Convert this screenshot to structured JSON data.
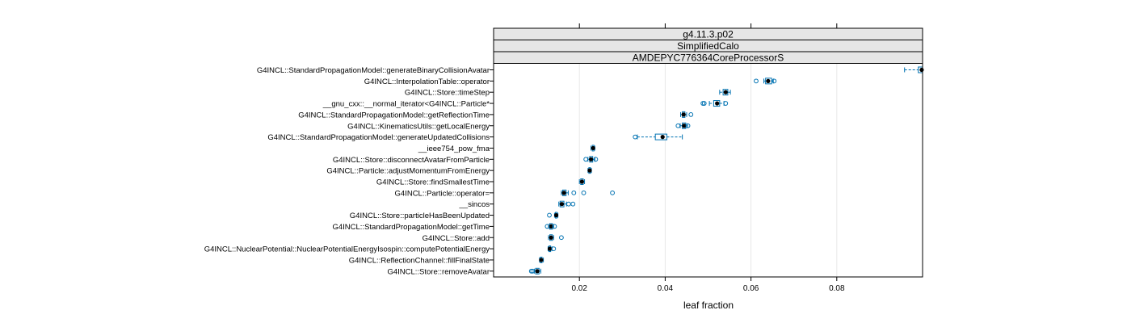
{
  "chart_data": {
    "type": "boxplot",
    "strips": [
      "g4.11.3.p02",
      "SimplifiedCalo",
      "AMDEPYC776364CoreProcessorS"
    ],
    "xlabel": "leaf fraction",
    "xlim": [
      0,
      0.1
    ],
    "xticks": [
      0.02,
      0.04,
      0.06,
      0.08
    ],
    "xtick_labels": [
      "0.02",
      "0.04",
      "0.06",
      "0.08"
    ],
    "grid": true,
    "colors": {
      "box": "#0072b2",
      "median": "#000000",
      "strip": "#e6e6e6",
      "grid": "#e8e8e8"
    },
    "categories": [
      {
        "label": "G4INCL::StandardPropagationModel::generateBinaryCollisionAvatar",
        "whisker_low": 0.0958,
        "q1": 0.099,
        "median": 0.0998,
        "q3": 0.1,
        "whisker_high": 0.1,
        "outliers": []
      },
      {
        "label": "G4INCL::InterpolationTable::operator",
        "whisker_low": 0.063,
        "q1": 0.0634,
        "median": 0.064,
        "q3": 0.0648,
        "whisker_high": 0.0652,
        "outliers": [
          0.0612,
          0.0654
        ]
      },
      {
        "label": "G4INCL::Store::timeStep",
        "whisker_low": 0.0527,
        "q1": 0.0535,
        "median": 0.0541,
        "q3": 0.0546,
        "whisker_high": 0.0552,
        "outliers": []
      },
      {
        "label": "__gnu_cxx::__normal_iterator<G4INCL::Particle*",
        "whisker_low": 0.0503,
        "q1": 0.0513,
        "median": 0.0521,
        "q3": 0.0527,
        "whisker_high": 0.0537,
        "outliers": [
          0.0488,
          0.0491,
          0.0541
        ]
      },
      {
        "label": "G4INCL::StandardPropagationModel::getReflectionTime",
        "whisker_low": 0.0436,
        "q1": 0.044,
        "median": 0.0443,
        "q3": 0.0446,
        "whisker_high": 0.045,
        "outliers": [
          0.046
        ]
      },
      {
        "label": "G4INCL::KinematicsUtils::getLocalEnergy",
        "whisker_low": 0.0435,
        "q1": 0.044,
        "median": 0.0444,
        "q3": 0.0448,
        "whisker_high": 0.0452,
        "outliers": [
          0.043,
          0.0453
        ]
      },
      {
        "label": "G4INCL::StandardPropagationModel::generateUpdatedCollisions",
        "whisker_low": 0.0335,
        "q1": 0.0377,
        "median": 0.0394,
        "q3": 0.0404,
        "whisker_high": 0.044,
        "outliers": [
          0.033
        ]
      },
      {
        "label": "__ieee754_pow_fma",
        "whisker_low": 0.0227,
        "q1": 0.023,
        "median": 0.0232,
        "q3": 0.0234,
        "whisker_high": 0.0236,
        "outliers": []
      },
      {
        "label": "G4INCL::Store::disconnectAvatarFromParticle",
        "whisker_low": 0.022,
        "q1": 0.0224,
        "median": 0.0227,
        "q3": 0.0231,
        "whisker_high": 0.0236,
        "outliers": [
          0.0215,
          0.0238
        ]
      },
      {
        "label": "G4INCL::Particle::adjustMomentumFromEnergy",
        "whisker_low": 0.022,
        "q1": 0.0222,
        "median": 0.0224,
        "q3": 0.0226,
        "whisker_high": 0.0228,
        "outliers": []
      },
      {
        "label": "G4INCL::Store::findSmallestTime",
        "whisker_low": 0.02,
        "q1": 0.0203,
        "median": 0.0206,
        "q3": 0.0209,
        "whisker_high": 0.0212,
        "outliers": []
      },
      {
        "label": "G4INCL::Particle::operator=",
        "whisker_low": 0.0158,
        "q1": 0.0161,
        "median": 0.0164,
        "q3": 0.0169,
        "whisker_high": 0.0174,
        "outliers": [
          0.0187,
          0.021,
          0.0277
        ]
      },
      {
        "label": "__sincos",
        "whisker_low": 0.0152,
        "q1": 0.0155,
        "median": 0.0159,
        "q3": 0.0164,
        "whisker_high": 0.017,
        "outliers": [
          0.0175,
          0.0185
        ]
      },
      {
        "label": "G4INCL::Store::particleHasBeenUpdated",
        "whisker_low": 0.0142,
        "q1": 0.0144,
        "median": 0.0146,
        "q3": 0.0148,
        "whisker_high": 0.015,
        "outliers": [
          0.013
        ]
      },
      {
        "label": "G4INCL::StandardPropagationModel::getTime",
        "whisker_low": 0.0128,
        "q1": 0.0131,
        "median": 0.0134,
        "q3": 0.0137,
        "whisker_high": 0.014,
        "outliers": [
          0.0125,
          0.0142
        ]
      },
      {
        "label": "G4INCL::Store::add",
        "whisker_low": 0.0128,
        "q1": 0.0131,
        "median": 0.0134,
        "q3": 0.0137,
        "whisker_high": 0.014,
        "outliers": [
          0.0158
        ]
      },
      {
        "label": "G4INCL::NuclearPotential::NuclearPotentialEnergyIsospin::computePotentialEnergy",
        "whisker_low": 0.0127,
        "q1": 0.0129,
        "median": 0.0131,
        "q3": 0.0133,
        "whisker_high": 0.0136,
        "outliers": [
          0.014
        ]
      },
      {
        "label": "G4INCL::ReflectionChannel::fillFinalState",
        "whisker_low": 0.0107,
        "q1": 0.0109,
        "median": 0.0111,
        "q3": 0.0113,
        "whisker_high": 0.0116,
        "outliers": []
      },
      {
        "label": "G4INCL::Store::removeAvatar",
        "whisker_low": 0.0095,
        "q1": 0.0098,
        "median": 0.0102,
        "q3": 0.0106,
        "whisker_high": 0.011,
        "outliers": [
          0.0088,
          0.0091
        ]
      }
    ]
  }
}
